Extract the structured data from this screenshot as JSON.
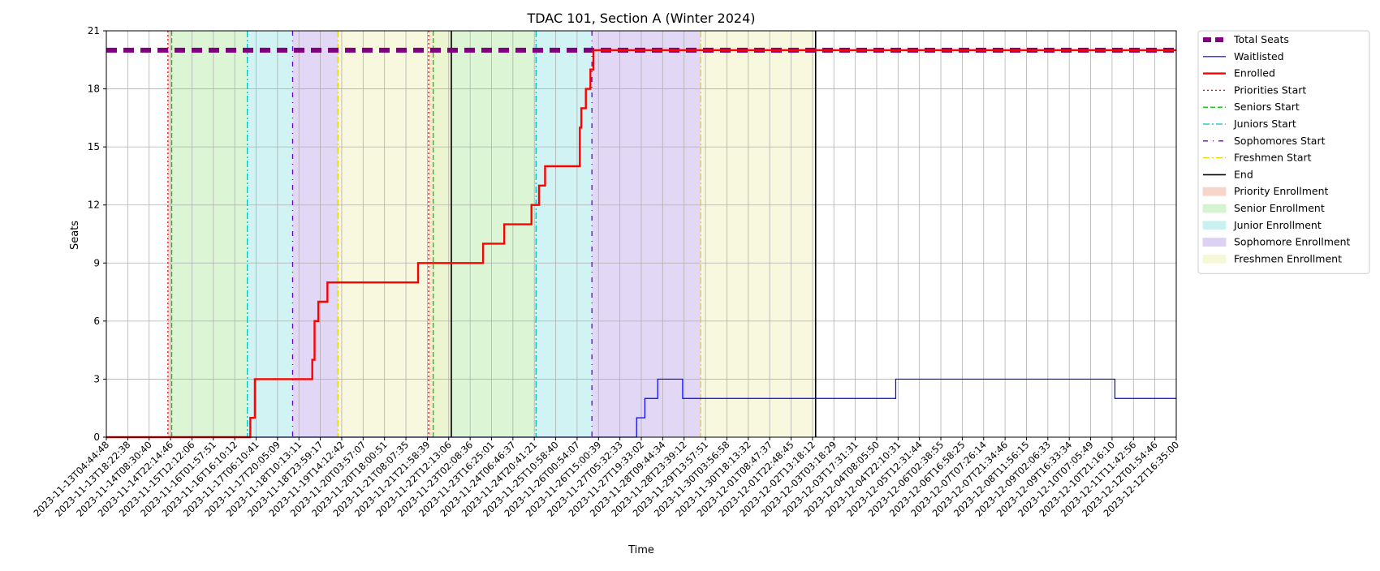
{
  "chart_data": {
    "type": "line",
    "title": "TDAC 101, Section A (Winter 2024)",
    "xlabel": "Time",
    "ylabel": "Seats",
    "ylim": [
      0,
      21
    ],
    "yticks": [
      0,
      3,
      6,
      9,
      12,
      15,
      18,
      21
    ],
    "xlim": [
      "2023-11-13T04:44:48",
      "2023-12-12T16:35:00"
    ],
    "xtick_labels": [
      "2023-11-13T04:44:48",
      "2023-11-13T18:22:38",
      "2023-11-14T08:30:40",
      "2023-11-14T22:14:46",
      "2023-11-15T12:12:06",
      "2023-11-16T01:57:51",
      "2023-11-16T16:10:12",
      "2023-11-17T06:10:41",
      "2023-11-17T20:05:09",
      "2023-11-18T10:13:11",
      "2023-11-18T23:59:17",
      "2023-11-19T14:12:42",
      "2023-11-20T03:57:07",
      "2023-11-20T18:00:51",
      "2023-11-21T08:07:35",
      "2023-11-21T21:58:39",
      "2023-11-22T12:13:06",
      "2023-11-23T02:08:36",
      "2023-11-23T16:25:01",
      "2023-11-24T06:46:37",
      "2023-11-24T20:41:21",
      "2023-11-25T10:58:40",
      "2023-11-26T00:54:07",
      "2023-11-26T15:00:39",
      "2023-11-27T05:32:33",
      "2023-11-27T19:33:02",
      "2023-11-28T09:44:34",
      "2023-11-28T23:39:12",
      "2023-11-29T13:57:51",
      "2023-11-30T03:56:58",
      "2023-11-30T18:13:32",
      "2023-12-01T08:47:37",
      "2023-12-01T22:48:45",
      "2023-12-02T13:18:12",
      "2023-12-03T03:18:29",
      "2023-12-03T17:31:31",
      "2023-12-04T08:05:50",
      "2023-12-04T22:10:31",
      "2023-12-05T12:31:44",
      "2023-12-06T02:38:55",
      "2023-12-06T16:58:25",
      "2023-12-07T07:26:14",
      "2023-12-07T21:34:46",
      "2023-12-08T11:56:15",
      "2023-12-09T02:06:33",
      "2023-12-09T16:33:34",
      "2023-12-10T07:05:49",
      "2023-12-10T21:16:10",
      "2023-12-11T11:42:56",
      "2023-12-12T01:54:46",
      "2023-12-12T16:35:00"
    ],
    "grid": true,
    "legend_position": "outside-right-top",
    "series": [
      {
        "name": "Total Seats",
        "color": "#800080",
        "style": "dashed-thick",
        "step": true,
        "x": [
          "2023-11-13T04:44:48",
          "2023-12-12T16:35:00"
        ],
        "y": [
          20,
          20
        ]
      },
      {
        "name": "Waitlisted",
        "color": "#0000ff",
        "style": "solid-thin",
        "step": true,
        "x": [
          "2023-11-13T04:44:48",
          "2023-11-27T19:33:02",
          "2023-11-28T01:00:00",
          "2023-11-28T09:30:00",
          "2023-11-28T10:30:00",
          "2023-11-29T02:00:00",
          "2023-12-04T23:00:00",
          "2023-12-11T00:00:00",
          "2023-12-12T16:35:00"
        ],
        "y": [
          0,
          1,
          2,
          3,
          3,
          2,
          3,
          2,
          2
        ]
      },
      {
        "name": "Enrolled",
        "color": "#ff0000",
        "style": "solid-thick",
        "step": true,
        "x": [
          "2023-11-13T04:44:48",
          "2023-11-17T04:00:00",
          "2023-11-17T07:00:00",
          "2023-11-18T21:00:00",
          "2023-11-18T22:30:00",
          "2023-11-19T01:00:00",
          "2023-11-19T07:00:00",
          "2023-11-21T19:00:00",
          "2023-11-23T14:00:00",
          "2023-11-24T04:00:00",
          "2023-11-24T22:00:00",
          "2023-11-25T03:00:00",
          "2023-11-25T07:00:00",
          "2023-11-26T06:00:00",
          "2023-11-26T07:00:00",
          "2023-11-26T10:00:00",
          "2023-11-26T13:00:00",
          "2023-11-26T15:00:00",
          "2023-12-12T16:35:00"
        ],
        "y": [
          0,
          1,
          3,
          4,
          6,
          7,
          8,
          9,
          10,
          11,
          12,
          13,
          14,
          16,
          17,
          18,
          19,
          20,
          20
        ]
      }
    ],
    "event_lines": [
      {
        "name": "Priorities Start",
        "color": "#ff0000",
        "style": "dotted",
        "x": [
          "2023-11-14T21:30:00",
          "2023-11-22T02:00:00"
        ]
      },
      {
        "name": "Seniors Start",
        "color": "#00cc00",
        "style": "dashed",
        "x": [
          "2023-11-15T00:00:00",
          "2023-11-22T05:00:00"
        ]
      },
      {
        "name": "Juniors Start",
        "color": "#00bfbf",
        "style": "dashdot",
        "x": [
          "2023-11-17T02:00:00",
          "2023-11-25T01:00:00"
        ]
      },
      {
        "name": "Sophomores Start",
        "color": "#6600cc",
        "style": "loose-dashdot",
        "x": [
          "2023-11-18T08:00:00",
          "2023-11-26T14:00:00"
        ]
      },
      {
        "name": "Freshmen Start",
        "color": "#e6d200",
        "style": "dashdot",
        "x": [
          "2023-11-19T14:00:00",
          "2023-11-29T14:00:00"
        ]
      },
      {
        "name": "End",
        "color": "#000000",
        "style": "solid",
        "x": [
          "2023-11-22T17:00:00",
          "2023-12-02T18:00:00"
        ]
      }
    ],
    "spans": [
      {
        "name": "Priority Enrollment",
        "color": "#f5c9b8",
        "ranges": [
          [
            "2023-11-14T21:30:00",
            "2023-11-15T00:00:00"
          ],
          [
            "2023-11-22T02:00:00",
            "2023-11-22T05:00:00"
          ]
        ]
      },
      {
        "name": "Senior Enrollment",
        "color": "#c8efbe",
        "ranges": [
          [
            "2023-11-15T00:00:00",
            "2023-11-17T02:00:00"
          ],
          [
            "2023-11-22T05:00:00",
            "2023-11-25T01:00:00"
          ]
        ]
      },
      {
        "name": "Junior Enrollment",
        "color": "#b9ecec",
        "ranges": [
          [
            "2023-11-17T02:00:00",
            "2023-11-18T08:00:00"
          ],
          [
            "2023-11-25T01:00:00",
            "2023-11-26T14:00:00"
          ]
        ]
      },
      {
        "name": "Sophomore Enrollment",
        "color": "#d2c2ef",
        "ranges": [
          [
            "2023-11-18T08:00:00",
            "2023-11-19T14:00:00"
          ],
          [
            "2023-11-26T14:00:00",
            "2023-11-29T14:00:00"
          ]
        ]
      },
      {
        "name": "Freshmen Enrollment",
        "color": "#f4f5cc",
        "ranges": [
          [
            "2023-11-19T14:00:00",
            "2023-11-22T17:00:00"
          ],
          [
            "2023-11-29T14:00:00",
            "2023-12-02T18:00:00"
          ]
        ]
      }
    ]
  }
}
